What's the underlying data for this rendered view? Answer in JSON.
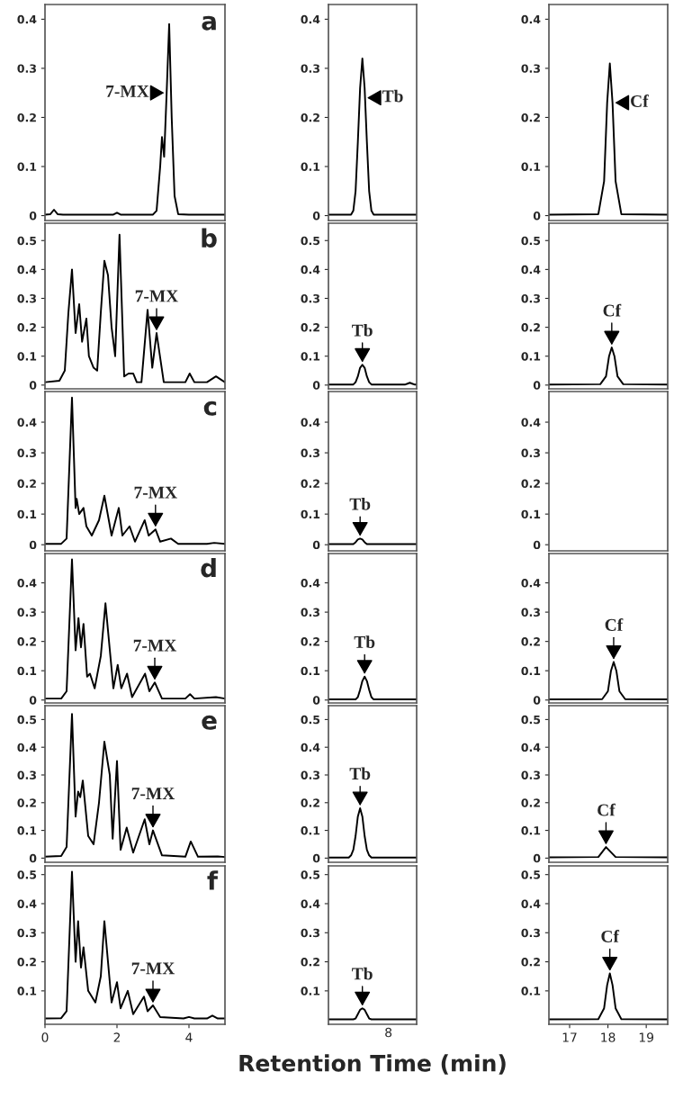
{
  "chart_data": [
    {
      "type": "line",
      "title": "a",
      "xlim": [
        0,
        5
      ],
      "ylim": [
        -0.01,
        0.43
      ],
      "yticks": [
        0,
        0.1,
        0.2,
        0.3,
        0.4
      ],
      "tick_labels": "y",
      "color": "#000000",
      "annotations": [
        {
          "text": "7-MX",
          "x": 3.38,
          "y": 0.25
        }
      ],
      "x": [
        0,
        0.15,
        0.25,
        0.35,
        0.5,
        1.9,
        2.0,
        2.1,
        3.0,
        3.1,
        3.2,
        3.25,
        3.31,
        3.38,
        3.45,
        3.52,
        3.6,
        3.7,
        4.0,
        5.0
      ],
      "values": [
        0.002,
        0.003,
        0.012,
        0.003,
        0.002,
        0.002,
        0.006,
        0.002,
        0.002,
        0.01,
        0.1,
        0.16,
        0.12,
        0.25,
        0.39,
        0.2,
        0.04,
        0.003,
        0.002,
        0.002
      ]
    },
    {
      "type": "line",
      "ylim": [
        -0.01,
        0.43
      ],
      "yticks": [
        0,
        0.1,
        0.2,
        0.3,
        0.4
      ],
      "tick_labels": "y",
      "color": "#000000",
      "annotations": [
        "Tb"
      ],
      "categories": [
        null,
        null,
        null,
        null,
        null,
        null,
        null,
        null,
        null,
        null,
        null,
        null,
        null,
        null,
        null,
        null,
        null,
        null,
        null,
        null,
        null,
        null,
        null,
        null,
        null,
        null,
        null,
        null,
        null,
        null,
        null,
        null,
        null,
        null,
        null,
        null,
        null,
        null,
        null,
        null
      ],
      "values": [
        0.002,
        0.002,
        0.002,
        0.002,
        0.002,
        0.002,
        0.002,
        0.002,
        0.002,
        0.002,
        0.002,
        0.01,
        0.05,
        0.15,
        0.26,
        0.32,
        0.26,
        0.15,
        0.05,
        0.01,
        0.002,
        0.002,
        0.002,
        0.002,
        0.002,
        0.002,
        0.002,
        0.002,
        0.002,
        0.002,
        0.002,
        0.002,
        0.002,
        0.002,
        0.002,
        0.002,
        0.002,
        0.002,
        0.002,
        0.002
      ]
    },
    {
      "type": "line",
      "xlim": [
        16.46,
        19.56
      ],
      "ylim": [
        -0.01,
        0.43
      ],
      "yticks": [
        0,
        0.1,
        0.2,
        0.3,
        0.4
      ],
      "tick_labels": "y",
      "color": "#000000",
      "annotations": [
        {
          "text": "Cf",
          "x": 18.12,
          "y": 0.23
        }
      ],
      "x": [
        16.46,
        17.75,
        17.9,
        17.98,
        18.05,
        18.12,
        18.2,
        18.35,
        19.56
      ],
      "values": [
        0.002,
        0.003,
        0.07,
        0.23,
        0.31,
        0.23,
        0.07,
        0.003,
        0.002
      ]
    },
    {
      "type": "line",
      "title": "b",
      "xlim": [
        0,
        5
      ],
      "ylim": [
        -0.013,
        0.56
      ],
      "yticks": [
        0,
        0.1,
        0.2,
        0.3,
        0.4,
        0.5
      ],
      "tick_labels": "y",
      "color": "#000000",
      "annotations": [
        {
          "text": "7-MX",
          "x": 3.1,
          "y": 0.18
        }
      ],
      "x": [
        0,
        0.4,
        0.55,
        0.65,
        0.75,
        0.85,
        0.95,
        1.03,
        1.15,
        1.22,
        1.35,
        1.45,
        1.55,
        1.65,
        1.75,
        1.85,
        1.95,
        2.07,
        2.2,
        2.32,
        2.45,
        2.55,
        2.68,
        2.85,
        2.98,
        3.1,
        3.3,
        3.6,
        3.9,
        4.02,
        4.15,
        4.5,
        4.75,
        5.0
      ],
      "values": [
        0.01,
        0.015,
        0.05,
        0.25,
        0.4,
        0.18,
        0.28,
        0.15,
        0.23,
        0.1,
        0.06,
        0.05,
        0.25,
        0.43,
        0.38,
        0.2,
        0.1,
        0.52,
        0.03,
        0.04,
        0.04,
        0.01,
        0.01,
        0.26,
        0.06,
        0.18,
        0.01,
        0.01,
        0.01,
        0.04,
        0.01,
        0.01,
        0.03,
        0.01
      ]
    },
    {
      "type": "line",
      "ylim": [
        -0.013,
        0.56
      ],
      "yticks": [
        0,
        0.1,
        0.2,
        0.3,
        0.4,
        0.5
      ],
      "tick_labels": "y",
      "color": "#000000",
      "annotations": [
        "Tb"
      ],
      "categories": [
        null,
        null,
        null,
        null,
        null,
        null,
        null,
        null,
        null,
        null,
        null,
        null,
        null,
        null,
        null,
        null,
        null,
        null,
        null,
        null,
        null,
        null,
        null,
        null,
        null,
        null,
        null,
        null,
        null,
        null,
        null,
        null,
        null,
        null,
        null,
        null,
        null,
        null,
        null,
        null
      ],
      "values": [
        0.002,
        0.002,
        0.002,
        0.002,
        0.002,
        0.002,
        0.002,
        0.002,
        0.002,
        0.002,
        0.002,
        0.002,
        0.01,
        0.03,
        0.06,
        0.07,
        0.06,
        0.03,
        0.01,
        0.002,
        0.002,
        0.002,
        0.002,
        0.002,
        0.002,
        0.002,
        0.002,
        0.002,
        0.002,
        0.002,
        0.002,
        0.002,
        0.002,
        0.002,
        0.002,
        0.005,
        0.008,
        0.005,
        0.002,
        0.002
      ]
    },
    {
      "type": "line",
      "xlim": [
        16.46,
        19.56
      ],
      "ylim": [
        -0.013,
        0.56
      ],
      "yticks": [
        0,
        0.1,
        0.2,
        0.3,
        0.4,
        0.5
      ],
      "tick_labels": "y",
      "color": "#000000",
      "annotations": [
        {
          "text": "Cf",
          "x": 18.1,
          "y": 0.13
        }
      ],
      "x": [
        16.46,
        17.8,
        17.95,
        18.03,
        18.1,
        18.17,
        18.25,
        18.4,
        19.56
      ],
      "values": [
        0.002,
        0.003,
        0.03,
        0.1,
        0.13,
        0.1,
        0.03,
        0.003,
        0.002
      ]
    },
    {
      "type": "line",
      "title": "c",
      "xlim": [
        0,
        5
      ],
      "ylim": [
        -0.02,
        0.5
      ],
      "yticks": [
        0,
        0.1,
        0.2,
        0.3,
        0.4
      ],
      "tick_labels": "y",
      "color": "#000000",
      "annotations": [
        {
          "text": "7-MX",
          "x": 3.07,
          "y": 0.05
        }
      ],
      "x": [
        0,
        0.45,
        0.6,
        0.75,
        0.85,
        0.88,
        0.95,
        1.07,
        1.15,
        1.3,
        1.5,
        1.65,
        1.85,
        2.05,
        2.15,
        2.35,
        2.5,
        2.77,
        2.88,
        3.07,
        3.2,
        3.5,
        3.7,
        4.5,
        4.7,
        5.0
      ],
      "values": [
        0.003,
        0.003,
        0.02,
        0.48,
        0.12,
        0.15,
        0.1,
        0.12,
        0.06,
        0.03,
        0.08,
        0.16,
        0.03,
        0.12,
        0.03,
        0.06,
        0.01,
        0.08,
        0.03,
        0.05,
        0.01,
        0.02,
        0.003,
        0.003,
        0.006,
        0.003
      ]
    },
    {
      "type": "line",
      "ylim": [
        -0.02,
        0.5
      ],
      "yticks": [
        0,
        0.1,
        0.2,
        0.3,
        0.4
      ],
      "tick_labels": "y",
      "color": "#000000",
      "annotations": [
        "Tb"
      ],
      "categories": [
        null,
        null,
        null,
        null,
        null,
        null,
        null,
        null,
        null,
        null,
        null,
        null,
        null,
        null,
        null,
        null,
        null,
        null,
        null,
        null,
        null,
        null,
        null,
        null,
        null,
        null,
        null,
        null,
        null,
        null,
        null,
        null,
        null,
        null,
        null,
        null,
        null,
        null,
        null,
        null
      ],
      "values": [
        0.002,
        0.002,
        0.002,
        0.002,
        0.002,
        0.002,
        0.002,
        0.002,
        0.002,
        0.002,
        0.002,
        0.002,
        0.008,
        0.017,
        0.02,
        0.017,
        0.008,
        0.002,
        0.002,
        0.002,
        0.002,
        0.002,
        0.002,
        0.002,
        0.002,
        0.002,
        0.002,
        0.002,
        0.002,
        0.002,
        0.002,
        0.002,
        0.002,
        0.002,
        0.002,
        0.002,
        0.002,
        0.002,
        0.002,
        0.002
      ]
    },
    {
      "type": "line",
      "xlim": [
        16.46,
        19.56
      ],
      "ylim": [
        -0.02,
        0.5
      ],
      "yticks": [
        0,
        0.1,
        0.2,
        0.3,
        0.4
      ],
      "tick_labels": "y"
    },
    {
      "type": "line",
      "title": "d",
      "xlim": [
        0,
        5
      ],
      "ylim": [
        -0.01,
        0.5
      ],
      "yticks": [
        0,
        0.1,
        0.2,
        0.3,
        0.4
      ],
      "tick_labels": "y",
      "color": "#000000",
      "annotations": [
        {
          "text": "7-MX",
          "x": 3.05,
          "y": 0.06
        }
      ],
      "x": [
        0,
        0.45,
        0.6,
        0.75,
        0.85,
        0.93,
        1.0,
        1.07,
        1.17,
        1.25,
        1.38,
        1.55,
        1.68,
        1.9,
        2.02,
        2.12,
        2.28,
        2.42,
        2.78,
        2.9,
        3.05,
        3.25,
        3.9,
        4.03,
        4.15,
        4.75,
        5.0
      ],
      "values": [
        0.005,
        0.005,
        0.03,
        0.48,
        0.17,
        0.28,
        0.18,
        0.26,
        0.08,
        0.09,
        0.04,
        0.15,
        0.33,
        0.04,
        0.12,
        0.04,
        0.09,
        0.01,
        0.09,
        0.03,
        0.06,
        0.005,
        0.005,
        0.02,
        0.005,
        0.01,
        0.005
      ]
    },
    {
      "type": "line",
      "ylim": [
        -0.01,
        0.5
      ],
      "yticks": [
        0,
        0.1,
        0.2,
        0.3,
        0.4
      ],
      "tick_labels": "y",
      "color": "#000000",
      "annotations": [
        "Tb"
      ],
      "categories": [
        null,
        null,
        null,
        null,
        null,
        null,
        null,
        null,
        null,
        null,
        null,
        null,
        null,
        null,
        null,
        null,
        null,
        null,
        null,
        null,
        null,
        null,
        null,
        null,
        null,
        null,
        null,
        null,
        null,
        null,
        null,
        null,
        null,
        null,
        null,
        null,
        null,
        null,
        null,
        null
      ],
      "values": [
        0.002,
        0.002,
        0.002,
        0.002,
        0.002,
        0.002,
        0.002,
        0.002,
        0.002,
        0.002,
        0.002,
        0.002,
        0.002,
        0.01,
        0.035,
        0.065,
        0.08,
        0.065,
        0.035,
        0.01,
        0.002,
        0.002,
        0.002,
        0.002,
        0.002,
        0.002,
        0.002,
        0.002,
        0.002,
        0.002,
        0.002,
        0.002,
        0.002,
        0.002,
        0.002,
        0.002,
        0.002,
        0.002,
        0.002,
        0.002
      ]
    },
    {
      "type": "line",
      "xlim": [
        16.46,
        19.56
      ],
      "ylim": [
        -0.01,
        0.5
      ],
      "yticks": [
        0,
        0.1,
        0.2,
        0.3,
        0.4
      ],
      "tick_labels": "y",
      "color": "#000000",
      "annotations": [
        {
          "text": "Cf",
          "x": 18.15,
          "y": 0.13
        }
      ],
      "x": [
        16.46,
        17.85,
        18.0,
        18.08,
        18.15,
        18.22,
        18.3,
        18.45,
        19.56
      ],
      "values": [
        0.002,
        0.003,
        0.03,
        0.1,
        0.13,
        0.1,
        0.03,
        0.003,
        0.002
      ]
    },
    {
      "type": "line",
      "title": "e",
      "xlim": [
        0,
        5
      ],
      "ylim": [
        -0.015,
        0.55
      ],
      "yticks": [
        0,
        0.1,
        0.2,
        0.3,
        0.4,
        0.5
      ],
      "tick_labels": "y",
      "color": "#000000",
      "annotations": [
        {
          "text": "7-MX",
          "x": 3.0,
          "y": 0.1
        }
      ],
      "x": [
        0,
        0.45,
        0.6,
        0.75,
        0.85,
        0.92,
        0.98,
        1.05,
        1.2,
        1.35,
        1.5,
        1.65,
        1.8,
        1.88,
        2.0,
        2.1,
        2.27,
        2.45,
        2.77,
        2.9,
        3.0,
        3.25,
        3.9,
        4.05,
        4.25,
        4.8,
        5.0
      ],
      "values": [
        0.005,
        0.008,
        0.04,
        0.52,
        0.15,
        0.24,
        0.22,
        0.28,
        0.08,
        0.05,
        0.2,
        0.42,
        0.3,
        0.07,
        0.35,
        0.03,
        0.11,
        0.02,
        0.14,
        0.05,
        0.1,
        0.01,
        0.005,
        0.06,
        0.005,
        0.006,
        0.004
      ]
    },
    {
      "type": "line",
      "ylim": [
        -0.015,
        0.55
      ],
      "yticks": [
        0,
        0.1,
        0.2,
        0.3,
        0.4,
        0.5
      ],
      "tick_labels": "y",
      "color": "#000000",
      "annotations": [
        "Tb"
      ],
      "categories": [
        null,
        null,
        null,
        null,
        null,
        null,
        null,
        null,
        null,
        null,
        null,
        null,
        null,
        null,
        null,
        null,
        null,
        null,
        null,
        null,
        null,
        null,
        null,
        null,
        null,
        null,
        null,
        null,
        null,
        null,
        null,
        null,
        null,
        null,
        null,
        null,
        null,
        null,
        null,
        null
      ],
      "values": [
        0.002,
        0.002,
        0.002,
        0.002,
        0.002,
        0.002,
        0.002,
        0.002,
        0.002,
        0.002,
        0.01,
        0.03,
        0.08,
        0.15,
        0.18,
        0.15,
        0.08,
        0.03,
        0.01,
        0.002,
        0.002,
        0.002,
        0.002,
        0.002,
        0.002,
        0.002,
        0.002,
        0.002,
        0.002,
        0.002,
        0.002,
        0.002,
        0.002,
        0.002,
        0.002,
        0.002,
        0.002,
        0.002,
        0.002,
        0.002
      ]
    },
    {
      "type": "line",
      "xlim": [
        16.46,
        19.56
      ],
      "ylim": [
        -0.015,
        0.55
      ],
      "yticks": [
        0,
        0.1,
        0.2,
        0.3,
        0.4,
        0.5
      ],
      "tick_labels": "y",
      "color": "#000000",
      "annotations": [
        {
          "text": "Cf",
          "x": 17.95,
          "y": 0.04
        }
      ],
      "x": [
        16.46,
        17.75,
        17.95,
        18.2,
        19.56
      ],
      "values": [
        0.003,
        0.004,
        0.04,
        0.004,
        0.003
      ]
    },
    {
      "type": "line",
      "title": "f",
      "xlim": [
        0,
        5
      ],
      "ylim": [
        -0.015,
        0.53
      ],
      "xticks": [
        0,
        2,
        4
      ],
      "yticks": [
        0.1,
        0.2,
        0.3,
        0.4,
        0.5
      ],
      "color": "#000000",
      "annotations": [
        {
          "text": "7-MX",
          "x": 3.0,
          "y": 0.05
        }
      ],
      "x": [
        0,
        0.45,
        0.6,
        0.75,
        0.85,
        0.92,
        1.0,
        1.07,
        1.2,
        1.4,
        1.55,
        1.65,
        1.85,
        2.0,
        2.1,
        2.3,
        2.45,
        2.75,
        2.85,
        3.0,
        3.2,
        3.85,
        4.0,
        4.15,
        4.5,
        4.65,
        4.8,
        5.0
      ],
      "values": [
        0.005,
        0.006,
        0.03,
        0.51,
        0.2,
        0.34,
        0.18,
        0.25,
        0.1,
        0.06,
        0.15,
        0.34,
        0.06,
        0.13,
        0.04,
        0.1,
        0.02,
        0.08,
        0.03,
        0.05,
        0.01,
        0.005,
        0.01,
        0.005,
        0.005,
        0.015,
        0.005,
        0.005
      ]
    },
    {
      "type": "line",
      "xlabel": "Retention Time (min)",
      "ylim": [
        -0.015,
        0.53
      ],
      "yticks": [
        0.1,
        0.2,
        0.3,
        0.4,
        0.5
      ],
      "tick_labels": "y",
      "color": "#000000",
      "annotations": [
        "Tb",
        "8"
      ],
      "categories": [
        null,
        null,
        null,
        null,
        null,
        null,
        null,
        null,
        null,
        null,
        null,
        null,
        null,
        null,
        null,
        null,
        null,
        null,
        null,
        null,
        null,
        null,
        null,
        null,
        null,
        null,
        null,
        null,
        null,
        null,
        null,
        null,
        null,
        null,
        null,
        null,
        null,
        null,
        null,
        null
      ],
      "values": [
        0.002,
        0.002,
        0.002,
        0.002,
        0.002,
        0.002,
        0.002,
        0.002,
        0.002,
        0.002,
        0.002,
        0.002,
        0.005,
        0.02,
        0.035,
        0.04,
        0.035,
        0.02,
        0.005,
        0.002,
        0.002,
        0.002,
        0.002,
        0.002,
        0.002,
        0.002,
        0.002,
        0.002,
        0.002,
        0.002,
        0.002,
        0.002,
        0.002,
        0.002,
        0.002,
        0.002,
        0.002,
        0.002,
        0.002,
        0.002
      ]
    },
    {
      "type": "line",
      "xlim": [
        16.46,
        19.56
      ],
      "ylim": [
        -0.015,
        0.53
      ],
      "xticks": [
        17,
        18,
        19
      ],
      "yticks": [
        0.1,
        0.2,
        0.3,
        0.4,
        0.5
      ],
      "color": "#000000",
      "annotations": [
        {
          "text": "Cf",
          "x": 18.05,
          "y": 0.16
        }
      ],
      "x": [
        16.46,
        17.75,
        17.9,
        17.98,
        18.05,
        18.12,
        18.2,
        18.35,
        19.56
      ],
      "values": [
        0.002,
        0.003,
        0.04,
        0.12,
        0.16,
        0.12,
        0.04,
        0.003,
        0.002
      ]
    }
  ]
}
